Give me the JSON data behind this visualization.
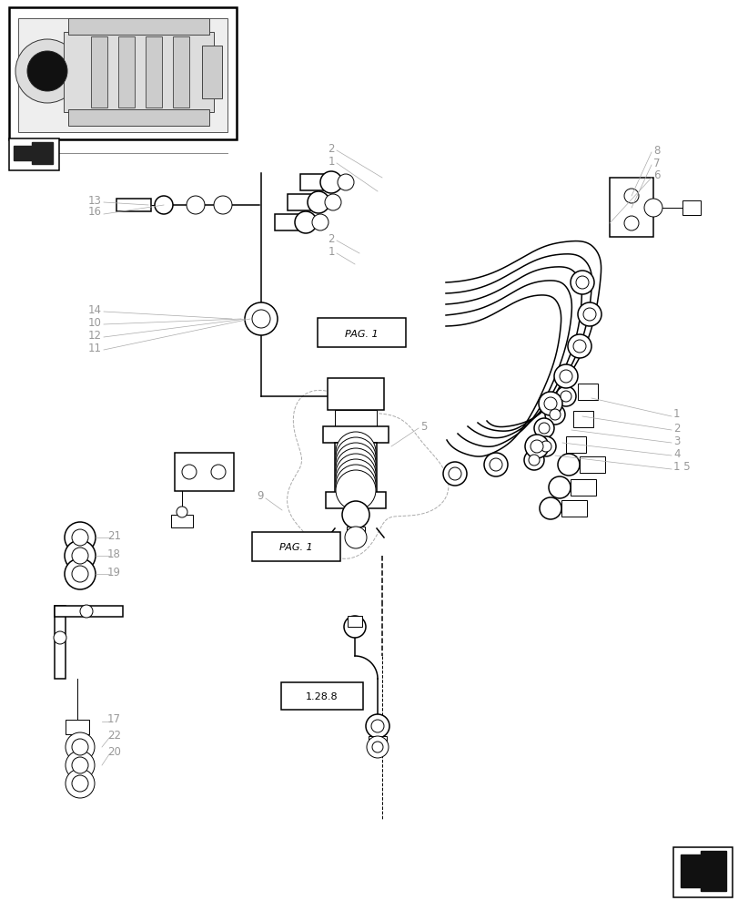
{
  "bg_color": "#ffffff",
  "line_color": "#000000",
  "label_color": "#aaaaaa",
  "fig_width": 8.12,
  "fig_height": 10.0,
  "dpi": 100
}
